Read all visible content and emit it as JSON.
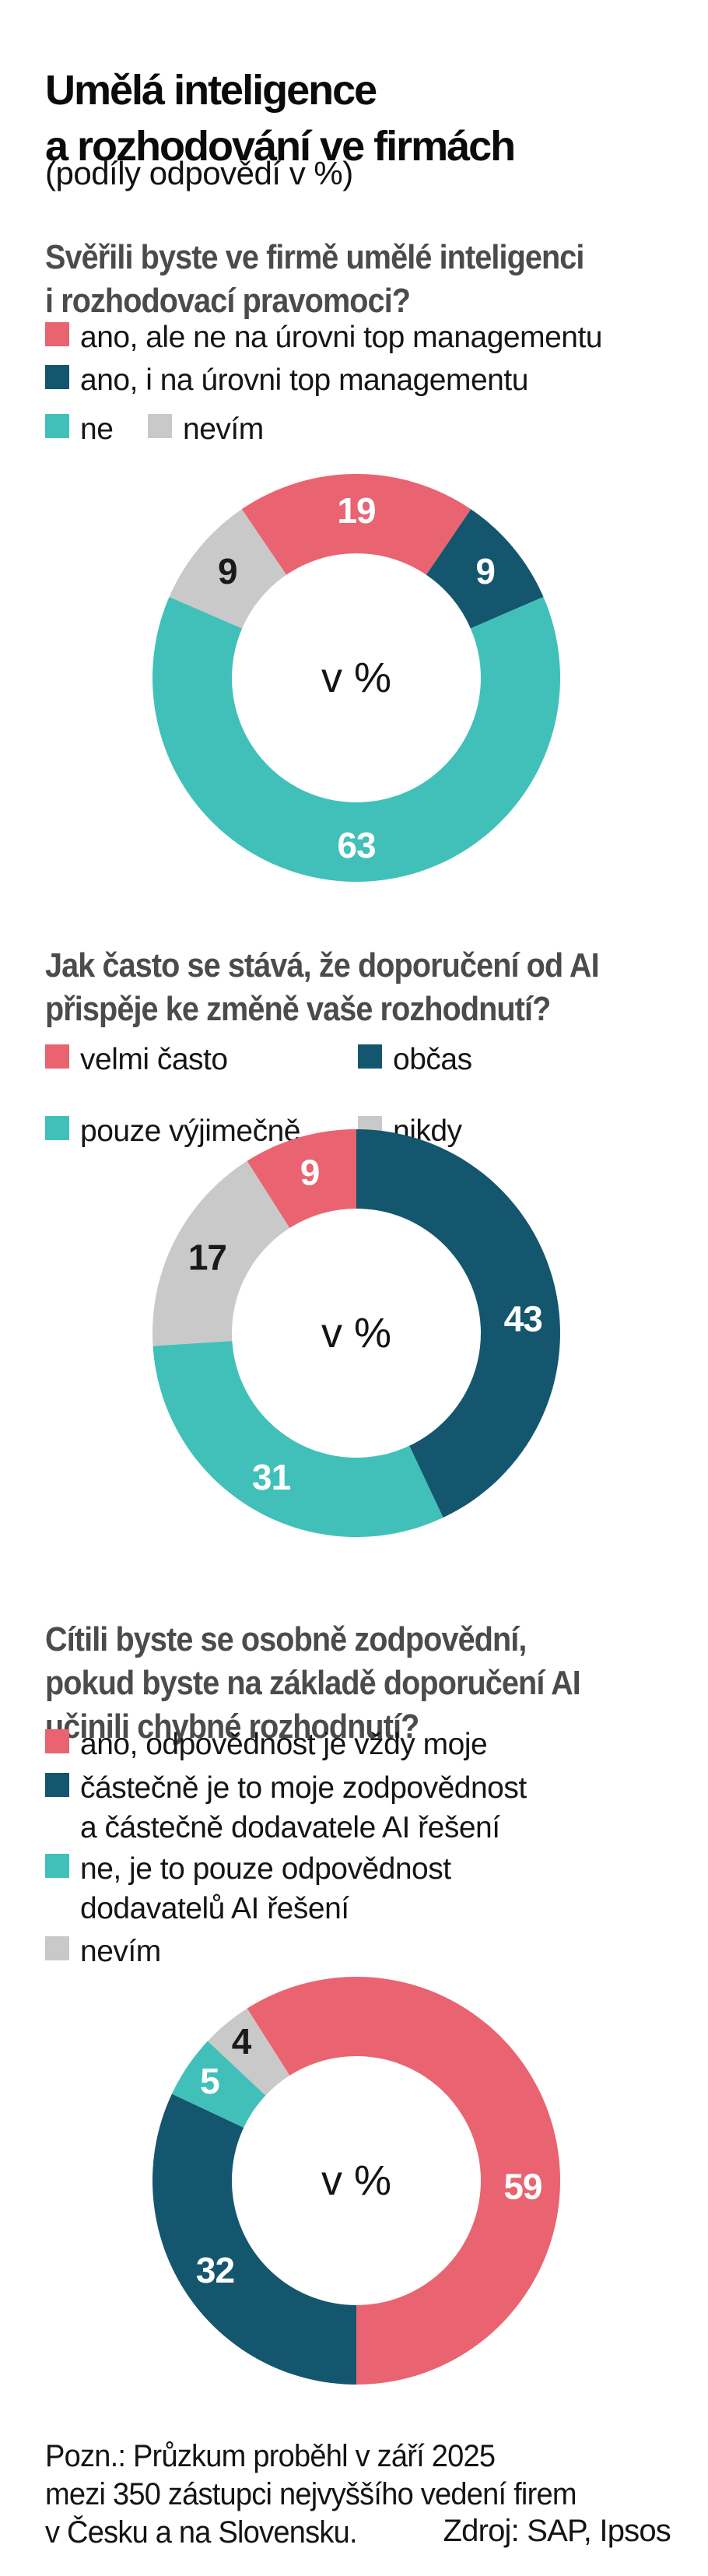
{
  "header": {
    "title": "Umělá inteligence\na rozhodování ve firmách",
    "subtitle": "(podíly odpovědí v %)"
  },
  "colors": {
    "red": "#E96470",
    "dark": "#14566E",
    "teal": "#41C0BA",
    "gray": "#C9C9C9"
  },
  "sections": [
    {
      "question": "Svěřili byste ve firmě umělé inteligenci\ni rozhodovací pravomoci?",
      "legend": [
        {
          "label": "ano, ale ne na úrovni top managementu",
          "color": "red"
        },
        {
          "label": "ano, i na úrovni top managementu",
          "color": "dark"
        },
        {
          "label": "ne",
          "color": "teal"
        },
        {
          "label": "nevím",
          "color": "gray"
        }
      ]
    },
    {
      "question": "Jak často se stává, že doporučení od AI\npřispěje ke změně vaše rozhodnutí?",
      "legend": [
        {
          "label": "velmi často",
          "color": "red"
        },
        {
          "label": "občas",
          "color": "dark"
        },
        {
          "label": "pouze výjimečně",
          "color": "teal"
        },
        {
          "label": "nikdy",
          "color": "gray"
        }
      ]
    },
    {
      "question": "Cítili byste se osobně zodpovědní,\npokud byste na základě doporučení AI\nučinili chybné rozhodnutí?",
      "legend": [
        {
          "label": "ano, odpovědnost je vždy moje",
          "color": "red"
        },
        {
          "label": "částečně je to moje zodpovědnost\na částečně dodavatele AI řešení",
          "color": "dark"
        },
        {
          "label": "ne, je to pouze odpovědnost\ndodavatelů AI řešení",
          "color": "teal"
        },
        {
          "label": "nevím",
          "color": "gray"
        }
      ]
    }
  ],
  "chart_data": [
    {
      "type": "pie",
      "variant": "donut",
      "center_label": "v %",
      "unit": "%",
      "outer_r": 262,
      "inner_r": 160,
      "label_r": 215,
      "start_angle": -34.2,
      "segments": [
        {
          "key": "ano-ne-na-urovni-top-managementu",
          "label": "ano, ale ne na úrovni top managementu",
          "value": 19,
          "color": "red",
          "label_fill": "#FFFFFF"
        },
        {
          "key": "ano-i-na-urovni-top-managementu",
          "label": "ano, i na úrovni top managementu",
          "value": 9,
          "color": "dark",
          "label_fill": "#FFFFFF"
        },
        {
          "key": "ne",
          "label": "ne",
          "value": 63,
          "color": "teal",
          "label_fill": "#FFFFFF"
        },
        {
          "key": "nevim",
          "label": "nevím",
          "value": 9,
          "color": "gray",
          "label_fill": "#1A1A1A"
        }
      ]
    },
    {
      "type": "pie",
      "variant": "donut",
      "center_label": "v %",
      "unit": "%",
      "outer_r": 262,
      "inner_r": 160,
      "label_r": 215,
      "start_angle": 0,
      "segments": [
        {
          "key": "obcas",
          "label": "občas",
          "value": 43,
          "color": "dark",
          "label_fill": "#FFFFFF",
          "label_angle": 85
        },
        {
          "key": "pouze-vyjimecne",
          "label": "pouze výjimečně",
          "value": 31,
          "color": "teal",
          "label_fill": "#FFFFFF"
        },
        {
          "key": "nikdy",
          "label": "nikdy",
          "value": 17,
          "color": "gray",
          "label_fill": "#1A1A1A"
        },
        {
          "key": "velmi-casto",
          "label": "velmi často",
          "value": 9,
          "color": "red",
          "label_fill": "#FFFFFF"
        }
      ]
    },
    {
      "type": "pie",
      "variant": "donut",
      "center_label": "v %",
      "unit": "%",
      "outer_r": 262,
      "inner_r": 160,
      "label_r": 215,
      "start_angle": -32.4,
      "segments": [
        {
          "key": "ano-odpovednost-vzdy-moje",
          "label": "ano, odpovědnost je vždy moje",
          "value": 59,
          "color": "red",
          "label_fill": "#FFFFFF",
          "label_angle": 92,
          "label_r": 214
        },
        {
          "key": "castecne-moje-a-dodavatele",
          "label": "částečně je to moje zodpovědnost a částečně dodavatele AI řešení",
          "value": 32,
          "color": "dark",
          "label_fill": "#FFFFFF"
        },
        {
          "key": "pouze-odpovednost-dodavatelu",
          "label": "ne, je to pouze odpovědnost dodavatelů AI řešení",
          "value": 5,
          "color": "teal",
          "label_fill": "#FFFFFF",
          "label_r": 228
        },
        {
          "key": "nevim",
          "label": "nevím",
          "value": 4,
          "color": "gray",
          "label_fill": "#1A1A1A",
          "label_r": 232
        }
      ]
    }
  ],
  "footer": {
    "note": "Pozn.: Průzkum proběhl v září 2025\nmezi 350 zástupci nejvyššího vedení firem\nv Česku a na Slovensku.",
    "source": "Zdroj: SAP, Ipsos"
  }
}
